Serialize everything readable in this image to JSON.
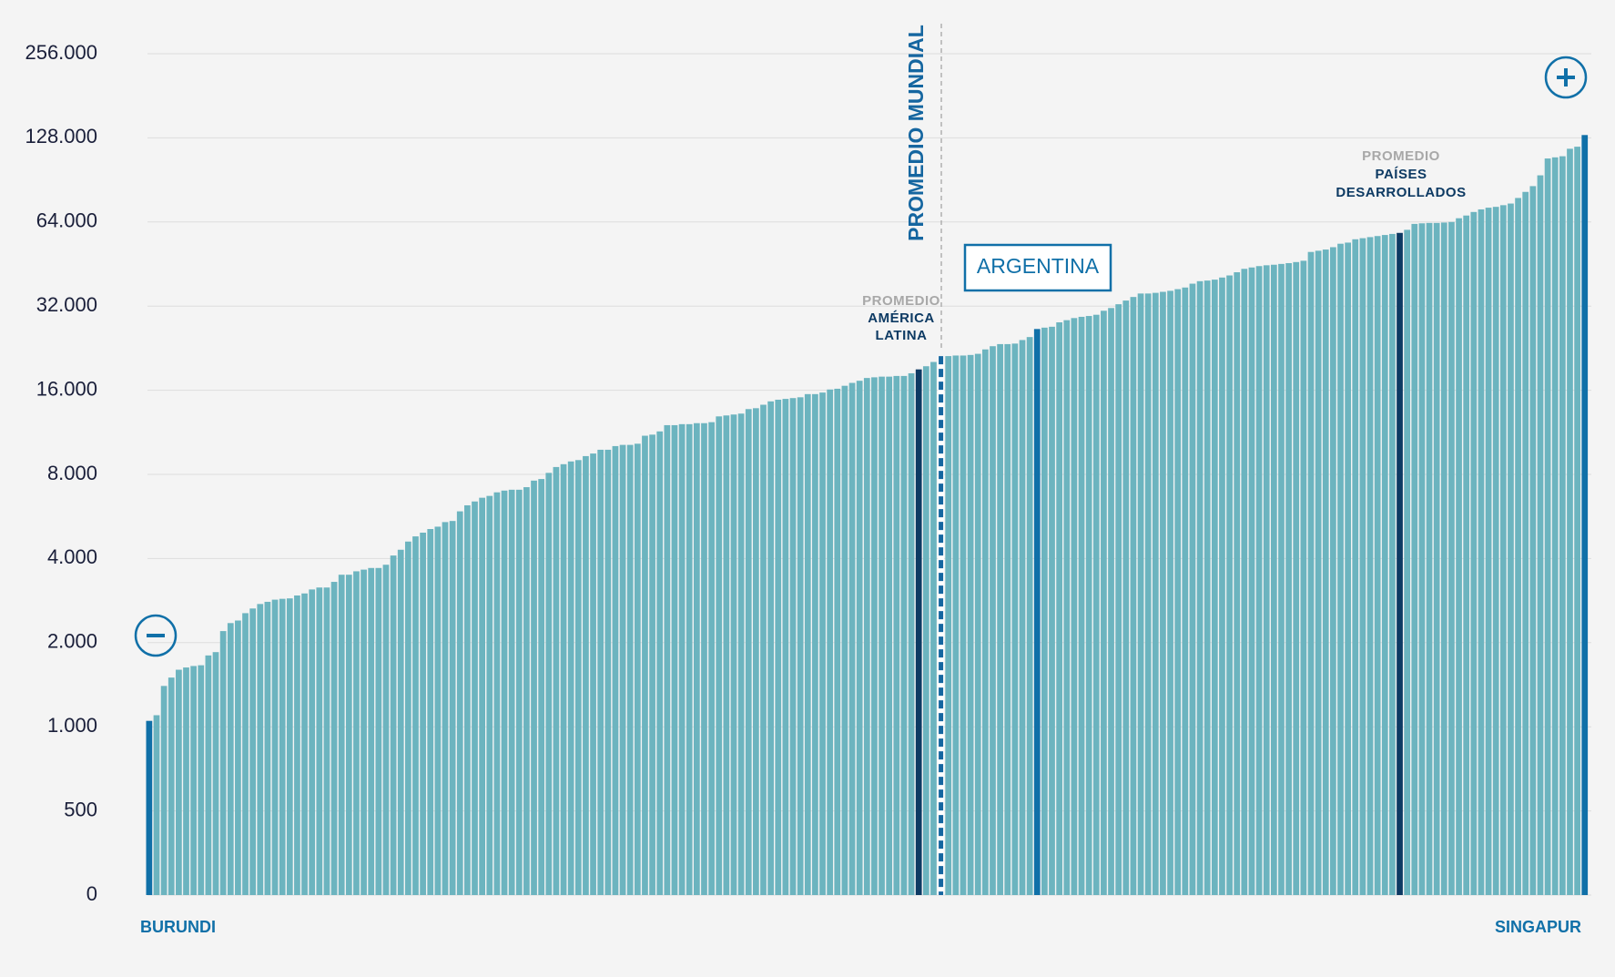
{
  "chart_data": {
    "type": "bar",
    "log_scale": true,
    "grid": true,
    "color": "#6cb4bf",
    "ylim": [
      0,
      256000
    ],
    "yticks": [
      0,
      500,
      {
        "value": 1000,
        "label": "1.000"
      },
      {
        "value": 2000,
        "label": "2.000"
      },
      {
        "value": 4000,
        "label": "4.000"
      },
      {
        "value": 8000,
        "label": "8.000"
      },
      {
        "value": 16000,
        "label": "16.000"
      },
      {
        "value": 32000,
        "label": "32.000"
      },
      {
        "value": 64000,
        "label": "64.000"
      },
      {
        "value": 128000,
        "label": "128.000"
      },
      {
        "value": 256000,
        "label": "256.000"
      }
    ],
    "categories": [
      "BURUNDI",
      null,
      null,
      null,
      null,
      null,
      null,
      null,
      null,
      null,
      null,
      null,
      null,
      null,
      null,
      null,
      null,
      null,
      null,
      null,
      null,
      null,
      null,
      null,
      null,
      null,
      null,
      null,
      null,
      null,
      null,
      null,
      null,
      null,
      null,
      null,
      null,
      null,
      null,
      null,
      null,
      null,
      null,
      null,
      null,
      null,
      null,
      null,
      null,
      null,
      null,
      null,
      null,
      null,
      null,
      null,
      null,
      null,
      null,
      null,
      null,
      null,
      null,
      null,
      null,
      null,
      null,
      null,
      null,
      null,
      null,
      null,
      null,
      null,
      null,
      null,
      null,
      null,
      null,
      null,
      null,
      null,
      null,
      null,
      null,
      null,
      null,
      null,
      null,
      null,
      null,
      null,
      null,
      null,
      null,
      null,
      null,
      null,
      null,
      null,
      null,
      null,
      null,
      null,
      null,
      null,
      null,
      null,
      null,
      null,
      null,
      null,
      null,
      null,
      null,
      null,
      null,
      null,
      null,
      null,
      null,
      null,
      null,
      null,
      null,
      null,
      null,
      null,
      null,
      null,
      null,
      null,
      null,
      null,
      null,
      null,
      null,
      null,
      null,
      null,
      null,
      null,
      null,
      null,
      null,
      null,
      null,
      null,
      null,
      null,
      null,
      null,
      null,
      null,
      null,
      null,
      null,
      null,
      null,
      null,
      null,
      null,
      null,
      null,
      null,
      null,
      null,
      null,
      null,
      null,
      null,
      null,
      null,
      null,
      null,
      null,
      null,
      null,
      null,
      null,
      null,
      null,
      null,
      null,
      null,
      null,
      null,
      null,
      null,
      null,
      null,
      null,
      null,
      null,
      "SINGAPUR"
    ],
    "values": [
      1050,
      1100,
      1400,
      1500,
      1600,
      1630,
      1650,
      1660,
      1800,
      1850,
      2200,
      2350,
      2400,
      2550,
      2650,
      2750,
      2800,
      2850,
      2870,
      2880,
      2950,
      3000,
      3100,
      3150,
      3150,
      3300,
      3500,
      3500,
      3600,
      3650,
      3700,
      3700,
      3800,
      4100,
      4300,
      4600,
      4800,
      4950,
      5100,
      5200,
      5400,
      5450,
      5900,
      6200,
      6400,
      6600,
      6700,
      6900,
      7000,
      7050,
      7050,
      7200,
      7600,
      7700,
      8100,
      8500,
      8700,
      8900,
      9000,
      9300,
      9500,
      9800,
      9800,
      10100,
      10200,
      10200,
      10300,
      11000,
      11100,
      11400,
      12000,
      12000,
      12100,
      12100,
      12200,
      12200,
      12300,
      12900,
      13000,
      13100,
      13200,
      13700,
      13800,
      14200,
      14600,
      14800,
      14900,
      15000,
      15100,
      15500,
      15500,
      15700,
      16100,
      16200,
      16600,
      17000,
      17300,
      17700,
      17800,
      17900,
      17900,
      18000,
      18000,
      18400,
      19000,
      19500,
      20200,
      21200,
      21200,
      21300,
      21300,
      21400,
      21600,
      22400,
      23000,
      23400,
      23400,
      23500,
      24200,
      24800,
      26500,
      26800,
      27000,
      28000,
      28500,
      29000,
      29300,
      29500,
      29800,
      30800,
      31500,
      32500,
      33500,
      34500,
      35500,
      35500,
      35700,
      36000,
      36300,
      36800,
      37300,
      38500,
      39300,
      39500,
      39800,
      40500,
      41200,
      42300,
      43500,
      44000,
      44500,
      44800,
      45000,
      45300,
      45600,
      46000,
      46500,
      50000,
      50500,
      51000,
      52000,
      53500,
      54000,
      55500,
      56000,
      56500,
      57000,
      57500,
      58000,
      58500,
      60000,
      63000,
      63300,
      63500,
      63500,
      63700,
      64000,
      66000,
      67500,
      69500,
      71000,
      72000,
      72500,
      73500,
      74500,
      78000,
      82000,
      86000,
      94000,
      108000,
      109000,
      110000,
      117000,
      119000,
      131000
    ],
    "highlights": [
      {
        "index": 0,
        "color": "#1070a8"
      },
      {
        "index": 104,
        "color": "#0d3a63"
      },
      {
        "index": 107,
        "color": "#1566a0",
        "style": "dashed"
      },
      {
        "index": 120,
        "color": "#1070a8"
      },
      {
        "index": 169,
        "color": "#0d3a63"
      },
      {
        "index": 194,
        "color": "#1070a8"
      }
    ],
    "annotations": {
      "world_average": "PROMEDIO MUNDIAL",
      "argentina": "ARGENTINA",
      "latin_america": [
        "PROMEDIO",
        "AMÉRICA",
        "LATINA"
      ],
      "developed": [
        "PROMEDIO",
        "PAÍSES",
        "DESARROLLADOS"
      ]
    }
  }
}
